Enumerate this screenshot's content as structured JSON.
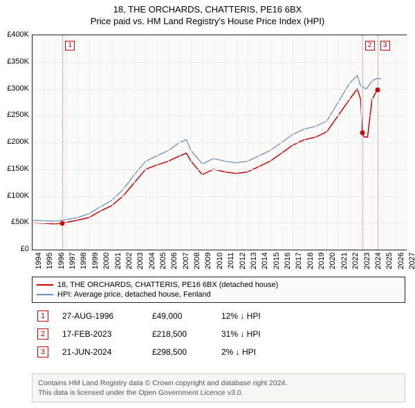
{
  "header": {
    "title1": "18, THE ORCHARDS, CHATTERIS, PE16 6BX",
    "title2": "Price paid vs. HM Land Registry's House Price Index (HPI)"
  },
  "chart": {
    "type": "line",
    "background_color": "#fbfcfa",
    "grid_color": "#e8e8e8",
    "border_color": "#222222",
    "x_years": [
      1994,
      1995,
      1996,
      1997,
      1998,
      1999,
      2000,
      2001,
      2002,
      2003,
      2004,
      2005,
      2006,
      2007,
      2008,
      2009,
      2010,
      2011,
      2012,
      2013,
      2014,
      2015,
      2016,
      2017,
      2018,
      2019,
      2020,
      2021,
      2022,
      2023,
      2024,
      2025,
      2026,
      2027
    ],
    "xlim": [
      1994,
      2027
    ],
    "ylim": [
      0,
      400000
    ],
    "ytick_step": 50000,
    "ytick_labels": [
      "£0",
      "£50K",
      "£100K",
      "£150K",
      "£200K",
      "£250K",
      "£300K",
      "£350K",
      "£400K"
    ],
    "series": [
      {
        "name": "property",
        "label": "18, THE ORCHARDS, CHATTERIS, PE16 6BX (detached house)",
        "color": "#d00000",
        "line_width": 1.5,
        "data": [
          [
            1994,
            50000
          ],
          [
            1995,
            49000
          ],
          [
            1996,
            48000
          ],
          [
            1996.65,
            49000
          ],
          [
            1997,
            51000
          ],
          [
            1998,
            55000
          ],
          [
            1999,
            60000
          ],
          [
            2000,
            72000
          ],
          [
            2001,
            82000
          ],
          [
            2002,
            100000
          ],
          [
            2003,
            125000
          ],
          [
            2004,
            150000
          ],
          [
            2005,
            158000
          ],
          [
            2006,
            165000
          ],
          [
            2007,
            175000
          ],
          [
            2007.6,
            180000
          ],
          [
            2008,
            165000
          ],
          [
            2009,
            140000
          ],
          [
            2010,
            150000
          ],
          [
            2011,
            145000
          ],
          [
            2012,
            142000
          ],
          [
            2013,
            145000
          ],
          [
            2014,
            155000
          ],
          [
            2015,
            165000
          ],
          [
            2016,
            180000
          ],
          [
            2017,
            195000
          ],
          [
            2018,
            205000
          ],
          [
            2019,
            210000
          ],
          [
            2020,
            220000
          ],
          [
            2021,
            250000
          ],
          [
            2022,
            280000
          ],
          [
            2022.7,
            300000
          ],
          [
            2023,
            280000
          ],
          [
            2023.13,
            218500
          ],
          [
            2023.3,
            210000
          ],
          [
            2023.6,
            210000
          ],
          [
            2024,
            280000
          ],
          [
            2024.47,
            298500
          ],
          [
            2024.7,
            295000
          ]
        ]
      },
      {
        "name": "hpi",
        "label": "HPI: Average price, detached house, Fenland",
        "color": "#6a8fc7",
        "line_width": 1.3,
        "data": [
          [
            1994,
            55000
          ],
          [
            1995,
            54000
          ],
          [
            1996,
            53000
          ],
          [
            1997,
            56000
          ],
          [
            1998,
            60000
          ],
          [
            1999,
            67000
          ],
          [
            2000,
            80000
          ],
          [
            2001,
            92000
          ],
          [
            2002,
            112000
          ],
          [
            2003,
            140000
          ],
          [
            2004,
            165000
          ],
          [
            2005,
            175000
          ],
          [
            2006,
            185000
          ],
          [
            2007,
            200000
          ],
          [
            2007.6,
            205000
          ],
          [
            2008,
            185000
          ],
          [
            2009,
            160000
          ],
          [
            2010,
            170000
          ],
          [
            2011,
            165000
          ],
          [
            2012,
            162000
          ],
          [
            2013,
            165000
          ],
          [
            2014,
            175000
          ],
          [
            2015,
            185000
          ],
          [
            2016,
            200000
          ],
          [
            2017,
            215000
          ],
          [
            2018,
            225000
          ],
          [
            2019,
            230000
          ],
          [
            2020,
            240000
          ],
          [
            2021,
            275000
          ],
          [
            2022,
            310000
          ],
          [
            2022.7,
            325000
          ],
          [
            2023,
            305000
          ],
          [
            2023.5,
            300000
          ],
          [
            2024,
            315000
          ],
          [
            2024.5,
            320000
          ],
          [
            2024.8,
            318000
          ]
        ]
      }
    ],
    "event_markers": [
      {
        "n": "1",
        "year": 1996.65,
        "price": 49000
      },
      {
        "n": "2",
        "year": 2023.13,
        "price": 218500
      },
      {
        "n": "3",
        "year": 2024.47,
        "price": 298500
      }
    ],
    "marker_line_color": "#d07070",
    "marker_box_border": "#d00000"
  },
  "legend": {
    "rows": [
      {
        "color": "#d00000",
        "label": "18, THE ORCHARDS, CHATTERIS, PE16 6BX (detached house)"
      },
      {
        "color": "#6a8fc7",
        "label": "HPI: Average price, detached house, Fenland"
      }
    ]
  },
  "events": [
    {
      "n": "1",
      "date": "27-AUG-1996",
      "price": "£49,000",
      "delta": "12% ↓ HPI"
    },
    {
      "n": "2",
      "date": "17-FEB-2023",
      "price": "£218,500",
      "delta": "31% ↓ HPI"
    },
    {
      "n": "3",
      "date": "21-JUN-2024",
      "price": "£298,500",
      "delta": "2% ↓ HPI"
    }
  ],
  "footer": {
    "line1": "Contains HM Land Registry data © Crown copyright and database right 2024.",
    "line2": "This data is licensed under the Open Government Licence v3.0."
  }
}
